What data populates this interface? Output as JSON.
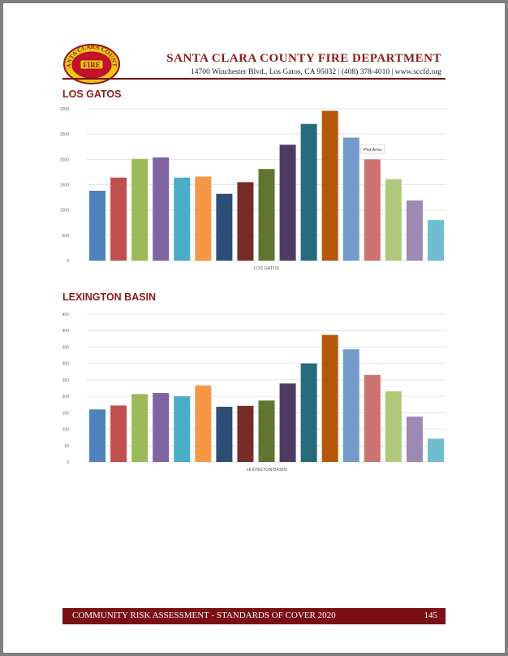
{
  "header": {
    "org_name": "SANTA CLARA COUNTY FIRE DEPARTMENT",
    "address": "14700 Winchester Blvd., Los Gatos, CA 95032 | (408) 378-4010 | www.sccfd.org",
    "logo_text_top": "SANTA CLARA COUNTY",
    "logo_text_center": "FIRE"
  },
  "sections": [
    {
      "title": "LOS GATOS"
    },
    {
      "title": "LEXINGTON BASIN"
    }
  ],
  "chart_data": [
    {
      "type": "bar",
      "title": "",
      "xlabel": "LOS GATOS",
      "ylabel": "",
      "ylim": [
        0,
        3000
      ],
      "yticks": [
        0,
        500,
        1000,
        1500,
        2000,
        2500,
        3000
      ],
      "ytick_labels": [
        "0",
        "500",
        "1000",
        "1500",
        "2000",
        "2500",
        "3000"
      ],
      "grid": true,
      "annotation": "Plot Area",
      "values": [
        1380,
        1640,
        2010,
        2040,
        1640,
        1660,
        1320,
        1550,
        1810,
        2290,
        2700,
        2960,
        2430,
        2000,
        1610,
        1190,
        800
      ],
      "colors": [
        "#4f81bd",
        "#c0504d",
        "#9bbb59",
        "#8064a2",
        "#4bacc6",
        "#f79646",
        "#2c4d75",
        "#772c2a",
        "#5f7530",
        "#4d3b62",
        "#276a7c",
        "#b65708",
        "#729aca",
        "#cd7371",
        "#afc97a",
        "#9c8ab4",
        "#6fbdd1"
      ]
    },
    {
      "type": "bar",
      "title": "",
      "xlabel": "LEXINGTON BASIN",
      "ylabel": "",
      "ylim": [
        0,
        450
      ],
      "yticks": [
        0,
        50,
        100,
        150,
        200,
        250,
        300,
        350,
        400,
        450
      ],
      "ytick_labels": [
        "0",
        "50",
        "100",
        "150",
        "200",
        "250",
        "300",
        "350",
        "400",
        "450"
      ],
      "grid": true,
      "values": [
        160,
        172,
        207,
        210,
        200,
        233,
        168,
        171,
        187,
        239,
        300,
        387,
        343,
        265,
        215,
        138,
        71
      ],
      "colors": [
        "#4f81bd",
        "#c0504d",
        "#9bbb59",
        "#8064a2",
        "#4bacc6",
        "#f79646",
        "#2c4d75",
        "#772c2a",
        "#5f7530",
        "#4d3b62",
        "#276a7c",
        "#b65708",
        "#729aca",
        "#cd7371",
        "#afc97a",
        "#9c8ab4",
        "#6fbdd1"
      ]
    }
  ],
  "footer": {
    "left_text": "COMMUNITY RISK ASSESSMENT - STANDARDS OF COVER 2020",
    "page_number": "145"
  }
}
